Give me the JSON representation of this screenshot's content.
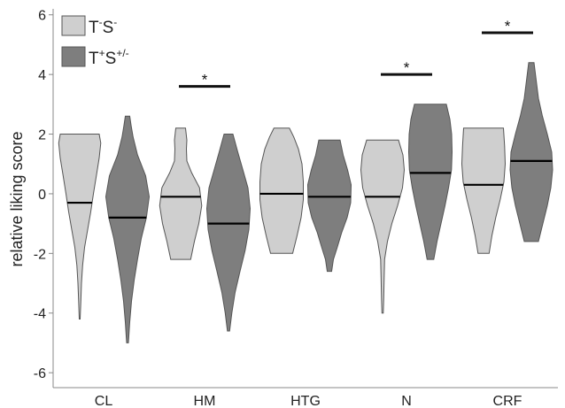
{
  "chart_data": {
    "type": "violin",
    "title": "",
    "xlabel": "",
    "ylabel": "relative liking score",
    "ylim": [
      -6.5,
      6.2
    ],
    "yticks": [
      -6,
      -4,
      -2,
      0,
      2,
      4,
      6
    ],
    "grid": false,
    "legend_position": "top-left",
    "colors": {
      "TS_minus": "#cfcfcf",
      "TS_plus": "#7e7e7e",
      "outline": "#555555",
      "median": "#000000"
    },
    "categories": [
      "CL",
      "HM",
      "HTG",
      "N",
      "CRF"
    ],
    "series": [
      {
        "name": "T⁻S⁻",
        "legend": {
          "base1": "T",
          "sup1": "-",
          "base2": "S",
          "sup2": "-"
        },
        "color": "#cfcfcf",
        "groups": [
          {
            "min": -4.2,
            "max": 2.0,
            "median": -0.3,
            "profile": [
              [
                -4.2,
                0.02
              ],
              [
                -3.6,
                0.05
              ],
              [
                -3.0,
                0.08
              ],
              [
                -2.4,
                0.13
              ],
              [
                -1.8,
                0.22
              ],
              [
                -1.2,
                0.36
              ],
              [
                -0.6,
                0.5
              ],
              [
                0.0,
                0.62
              ],
              [
                0.6,
                0.75
              ],
              [
                1.2,
                0.88
              ],
              [
                1.7,
                0.95
              ],
              [
                2.0,
                0.88
              ]
            ]
          },
          {
            "min": -2.2,
            "max": 2.2,
            "median": -0.1,
            "profile": [
              [
                -2.2,
                0.45
              ],
              [
                -1.6,
                0.62
              ],
              [
                -1.0,
                0.82
              ],
              [
                -0.4,
                0.95
              ],
              [
                0.2,
                0.85
              ],
              [
                0.7,
                0.5
              ],
              [
                1.1,
                0.28
              ],
              [
                1.5,
                0.26
              ],
              [
                1.8,
                0.28
              ],
              [
                2.2,
                0.22
              ]
            ]
          },
          {
            "min": -2.0,
            "max": 2.2,
            "median": 0.0,
            "profile": [
              [
                -2.0,
                0.5
              ],
              [
                -1.4,
                0.7
              ],
              [
                -0.8,
                0.88
              ],
              [
                -0.2,
                0.98
              ],
              [
                0.4,
                0.98
              ],
              [
                1.0,
                0.92
              ],
              [
                1.5,
                0.76
              ],
              [
                1.9,
                0.55
              ],
              [
                2.2,
                0.35
              ]
            ]
          },
          {
            "min": -4.0,
            "max": 1.8,
            "median": -0.1,
            "profile": [
              [
                -4.0,
                0.03
              ],
              [
                -3.5,
                0.05
              ],
              [
                -2.8,
                0.07
              ],
              [
                -2.2,
                0.09
              ],
              [
                -1.6,
                0.22
              ],
              [
                -1.0,
                0.42
              ],
              [
                -0.4,
                0.68
              ],
              [
                0.2,
                0.9
              ],
              [
                0.8,
                0.98
              ],
              [
                1.3,
                0.92
              ],
              [
                1.8,
                0.72
              ]
            ]
          },
          {
            "min": -2.0,
            "max": 2.2,
            "median": 0.3,
            "profile": [
              [
                -2.0,
                0.25
              ],
              [
                -1.4,
                0.38
              ],
              [
                -0.8,
                0.55
              ],
              [
                -0.2,
                0.75
              ],
              [
                0.4,
                0.92
              ],
              [
                1.0,
                0.98
              ],
              [
                1.6,
                0.95
              ],
              [
                2.2,
                0.9
              ]
            ]
          }
        ]
      },
      {
        "name": "T⁺S⁺/⁻",
        "legend": {
          "base1": "T",
          "sup1": "+",
          "base2": "S",
          "sup2": "+/-"
        },
        "color": "#7e7e7e",
        "groups": [
          {
            "min": -5.0,
            "max": 2.6,
            "median": -0.8,
            "profile": [
              [
                -5.0,
                0.04
              ],
              [
                -4.3,
                0.1
              ],
              [
                -3.6,
                0.18
              ],
              [
                -2.9,
                0.3
              ],
              [
                -2.2,
                0.45
              ],
              [
                -1.5,
                0.62
              ],
              [
                -0.8,
                0.85
              ],
              [
                -0.1,
                0.98
              ],
              [
                0.6,
                0.82
              ],
              [
                1.3,
                0.45
              ],
              [
                1.9,
                0.25
              ],
              [
                2.3,
                0.16
              ],
              [
                2.6,
                0.1
              ]
            ]
          },
          {
            "min": -4.6,
            "max": 2.0,
            "median": -1.0,
            "profile": [
              [
                -4.6,
                0.05
              ],
              [
                -4.0,
                0.15
              ],
              [
                -3.3,
                0.3
              ],
              [
                -2.6,
                0.52
              ],
              [
                -1.9,
                0.75
              ],
              [
                -1.2,
                0.92
              ],
              [
                -0.5,
                0.98
              ],
              [
                0.2,
                0.88
              ],
              [
                0.8,
                0.65
              ],
              [
                1.4,
                0.42
              ],
              [
                2.0,
                0.2
              ]
            ]
          },
          {
            "min": -2.6,
            "max": 1.8,
            "median": -0.1,
            "profile": [
              [
                -2.6,
                0.1
              ],
              [
                -2.2,
                0.18
              ],
              [
                -1.8,
                0.35
              ],
              [
                -1.3,
                0.55
              ],
              [
                -0.8,
                0.8
              ],
              [
                -0.3,
                0.96
              ],
              [
                0.3,
                0.98
              ],
              [
                0.8,
                0.82
              ],
              [
                1.3,
                0.62
              ],
              [
                1.8,
                0.48
              ]
            ]
          },
          {
            "min": -2.2,
            "max": 3.0,
            "median": 0.7,
            "profile": [
              [
                -2.2,
                0.15
              ],
              [
                -1.6,
                0.3
              ],
              [
                -1.0,
                0.48
              ],
              [
                -0.4,
                0.66
              ],
              [
                0.2,
                0.82
              ],
              [
                0.8,
                0.95
              ],
              [
                1.4,
                0.98
              ],
              [
                2.0,
                0.96
              ],
              [
                2.5,
                0.88
              ],
              [
                3.0,
                0.72
              ]
            ]
          },
          {
            "min": -1.6,
            "max": 4.4,
            "median": 1.1,
            "profile": [
              [
                -1.6,
                0.32
              ],
              [
                -1.0,
                0.52
              ],
              [
                -0.4,
                0.72
              ],
              [
                0.2,
                0.88
              ],
              [
                0.8,
                0.96
              ],
              [
                1.4,
                0.92
              ],
              [
                2.0,
                0.72
              ],
              [
                2.6,
                0.5
              ],
              [
                3.2,
                0.32
              ],
              [
                3.8,
                0.22
              ],
              [
                4.4,
                0.12
              ]
            ]
          }
        ]
      }
    ],
    "annotations": [
      {
        "category": "HM",
        "label": "*",
        "y": 3.6
      },
      {
        "category": "N",
        "label": "*",
        "y": 4.0
      },
      {
        "category": "CRF",
        "label": "*",
        "y": 5.4
      }
    ]
  }
}
